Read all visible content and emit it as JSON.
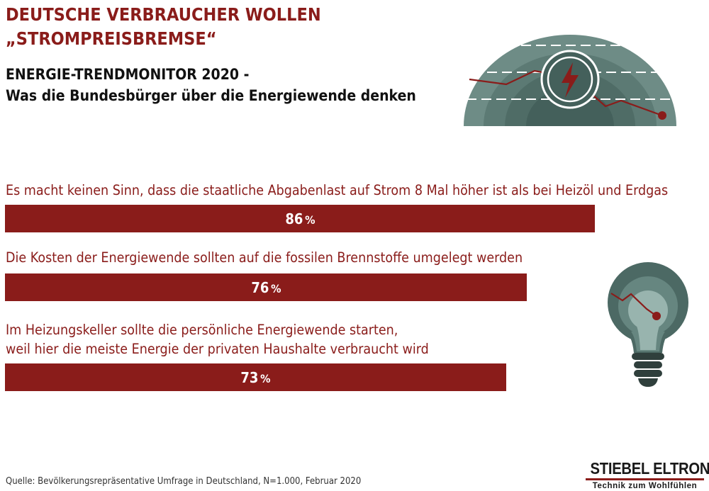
{
  "headline": {
    "line1": "DEUTSCHE VERBRAUCHER WOLLEN",
    "line2": "„STROMPREISBREMSE“"
  },
  "subtitle": {
    "line1": "ENERGIE-TRENDMONITOR 2020 -",
    "line2": "Was die Bundesbürger über die Energiewende denken"
  },
  "chart_data": {
    "type": "bar",
    "orientation": "horizontal",
    "unit": "%",
    "xlim": [
      0,
      100
    ],
    "grid": false,
    "legend": "none",
    "categories": [
      "Es macht keinen Sinn, dass die staatliche Abgabenlast auf Strom 8 Mal höher ist als bei Heizöl und Erdgas",
      "Die Kosten der Energiewende sollten auf die fossilen Brennstoffe umgelegt werden",
      "Im Heizungskeller sollte die persönliche Energiewende starten, weil hier die meiste Energie der privaten Haushalte verbraucht wird"
    ],
    "category_lines": [
      [
        "Es macht keinen Sinn, dass die staatliche Abgabenlast auf Strom 8 Mal höher ist als bei Heizöl und Erdgas"
      ],
      [
        "Die Kosten der Energiewende sollten auf die fossilen Brennstoffe umgelegt werden"
      ],
      [
        "Im Heizungskeller sollte die persönliche Energiewende starten,",
        "weil hier die meiste Energie der privaten Haushalte verbraucht wird"
      ]
    ],
    "values": [
      86,
      76,
      73
    ],
    "bar_labels": [
      "86",
      "76",
      "73"
    ],
    "bar_color": "#8a1c1a",
    "label_color": "#ffffff"
  },
  "source": "Quelle: Bevölkerungsrepräsentative Umfrage in Deutschland, N=1.000, Februar 2020",
  "brand": {
    "name": "STIEBEL ELTRON",
    "tagline": "Technik zum Wohlfühlen",
    "accent": "#8a1c1a"
  },
  "icons": [
    "gauge-icon",
    "lightning-icon",
    "light-bulb-icon"
  ],
  "colors": {
    "accent": "#8a1c1a",
    "text_dark": "#111111",
    "icon_teal_dark": "#4c6964",
    "icon_teal_mid": "#668680",
    "icon_teal_light": "#98b4ae"
  }
}
